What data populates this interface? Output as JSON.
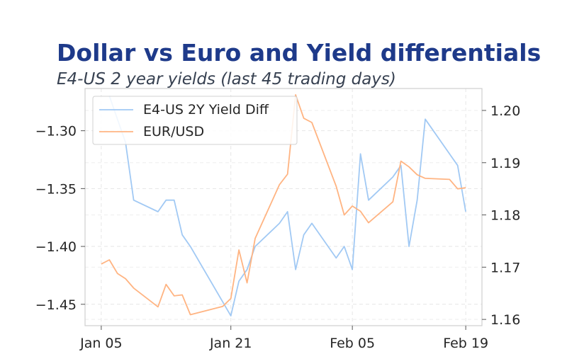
{
  "chart_data": {
    "type": "line",
    "title": "Dollar vs Euro and Yield differentials",
    "subtitle": "E4-US 2 year yields (last 45 trading days)",
    "xlabel": "",
    "x_ticks": [
      {
        "date": "2025-01-05",
        "label": "Jan 05"
      },
      {
        "date": "2025-01-21",
        "label": "Jan 21"
      },
      {
        "date": "2025-02-05",
        "label": "Feb 05"
      },
      {
        "date": "2025-02-19",
        "label": "Feb 19"
      }
    ],
    "xlim": [
      "2025-01-03",
      "2025-02-21"
    ],
    "y_left": {
      "ylabel": "",
      "ylim": [
        -1.4685,
        -1.2635
      ],
      "ticks": [
        -1.3,
        -1.35,
        -1.4,
        -1.45
      ],
      "tick_labels": [
        "−1.30",
        "−1.35",
        "−1.40",
        "−1.45"
      ]
    },
    "y_right": {
      "ylabel": "",
      "ylim": [
        1.1588,
        1.2042
      ],
      "ticks": [
        1.2,
        1.19,
        1.18,
        1.17,
        1.16
      ],
      "tick_labels": [
        "1.20",
        "1.19",
        "1.18",
        "1.17",
        "1.16"
      ]
    },
    "grid": true,
    "legend_position": "upper-left",
    "series": [
      {
        "name": "E4-US 2Y Yield Diff",
        "axis": "left",
        "color": "#a1c9f4",
        "points": [
          [
            "2025-01-06",
            -1.27
          ],
          [
            "2025-01-07",
            -1.29
          ],
          [
            "2025-01-08",
            -1.31
          ],
          [
            "2025-01-09",
            -1.36
          ],
          [
            "2025-01-12",
            -1.37
          ],
          [
            "2025-01-13",
            -1.36
          ],
          [
            "2025-01-14",
            -1.36
          ],
          [
            "2025-01-15",
            -1.39
          ],
          [
            "2025-01-16",
            -1.4
          ],
          [
            "2025-01-21",
            -1.46
          ],
          [
            "2025-01-22",
            -1.43
          ],
          [
            "2025-01-23",
            -1.42
          ],
          [
            "2025-01-24",
            -1.4
          ],
          [
            "2025-01-27",
            -1.38
          ],
          [
            "2025-01-28",
            -1.37
          ],
          [
            "2025-01-29",
            -1.42
          ],
          [
            "2025-01-30",
            -1.39
          ],
          [
            "2025-01-31",
            -1.38
          ],
          [
            "2025-02-03",
            -1.41
          ],
          [
            "2025-02-04",
            -1.4
          ],
          [
            "2025-02-05",
            -1.42
          ],
          [
            "2025-02-06",
            -1.32
          ],
          [
            "2025-02-07",
            -1.36
          ],
          [
            "2025-02-10",
            -1.34
          ],
          [
            "2025-02-11",
            -1.33
          ],
          [
            "2025-02-12",
            -1.4
          ],
          [
            "2025-02-13",
            -1.36
          ],
          [
            "2025-02-14",
            -1.29
          ],
          [
            "2025-02-18",
            -1.33
          ],
          [
            "2025-02-19",
            -1.37
          ]
        ]
      },
      {
        "name": "EUR/USD",
        "axis": "right",
        "color": "#ffb482",
        "points": [
          [
            "2025-01-05",
            1.1706
          ],
          [
            "2025-01-06",
            1.1714
          ],
          [
            "2025-01-07",
            1.1688
          ],
          [
            "2025-01-08",
            1.1678
          ],
          [
            "2025-01-09",
            1.166
          ],
          [
            "2025-01-12",
            1.1624
          ],
          [
            "2025-01-13",
            1.1667
          ],
          [
            "2025-01-14",
            1.1645
          ],
          [
            "2025-01-15",
            1.1647
          ],
          [
            "2025-01-16",
            1.1609
          ],
          [
            "2025-01-20",
            1.1625
          ],
          [
            "2025-01-21",
            1.164
          ],
          [
            "2025-01-22",
            1.1733
          ],
          [
            "2025-01-23",
            1.167
          ],
          [
            "2025-01-24",
            1.1755
          ],
          [
            "2025-01-27",
            1.1858
          ],
          [
            "2025-01-28",
            1.1878
          ],
          [
            "2025-01-29",
            1.203
          ],
          [
            "2025-01-30",
            1.1985
          ],
          [
            "2025-01-31",
            1.1977
          ],
          [
            "2025-02-03",
            1.1855
          ],
          [
            "2025-02-04",
            1.18
          ],
          [
            "2025-02-05",
            1.1817
          ],
          [
            "2025-02-06",
            1.1807
          ],
          [
            "2025-02-07",
            1.1785
          ],
          [
            "2025-02-10",
            1.1825
          ],
          [
            "2025-02-11",
            1.1903
          ],
          [
            "2025-02-12",
            1.1892
          ],
          [
            "2025-02-13",
            1.1877
          ],
          [
            "2025-02-14",
            1.187
          ],
          [
            "2025-02-17",
            1.1868
          ],
          [
            "2025-02-18",
            1.185
          ],
          [
            "2025-02-19",
            1.1852
          ]
        ]
      }
    ]
  }
}
